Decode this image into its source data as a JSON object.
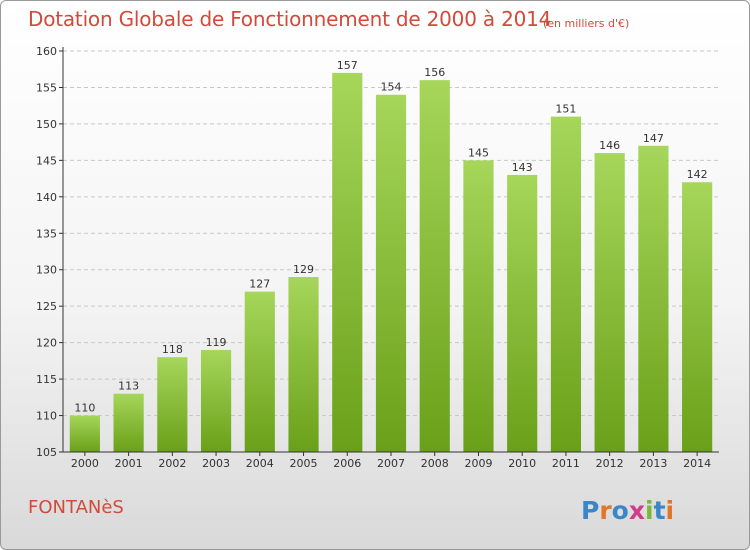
{
  "header": {
    "title": "Dotation Globale de Fonctionnement de 2000 à 2014",
    "unit": "(en milliers d'€)"
  },
  "footer": {
    "commune": "FONTANèS",
    "logo": "Proxiti"
  },
  "colors": {
    "title": "#d24a3a",
    "bar_top": "#a6d65a",
    "bar_bottom": "#6aa019",
    "axis": "#333333",
    "grid": "#c8c8c8"
  },
  "chart_data": {
    "type": "bar",
    "title": "Dotation Globale de Fonctionnement de 2000 à 2014",
    "categories": [
      "2000",
      "2001",
      "2002",
      "2003",
      "2004",
      "2005",
      "2006",
      "2007",
      "2008",
      "2009",
      "2010",
      "2011",
      "2012",
      "2013",
      "2014"
    ],
    "values": [
      110,
      113,
      118,
      119,
      127,
      129,
      157,
      154,
      156,
      145,
      143,
      151,
      146,
      147,
      142
    ],
    "xlabel": "",
    "ylabel": "",
    "ylim": [
      105,
      160
    ],
    "yticks": [
      105,
      110,
      115,
      120,
      125,
      130,
      135,
      140,
      145,
      150,
      155,
      160
    ],
    "grid": true
  }
}
